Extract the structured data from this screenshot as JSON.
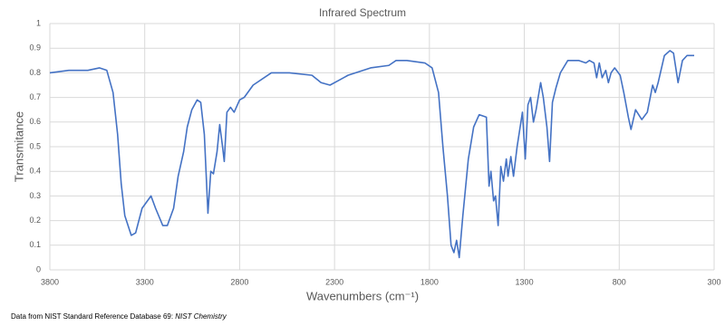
{
  "chart_data": {
    "type": "line",
    "title": "Infrared Spectrum",
    "x_label": "Wavenumbers (cm⁻¹)",
    "y_label": "Transmitance",
    "source": [
      "Data from NIST Standard Reference Database 69: ",
      "NIST Chemistry"
    ],
    "color": "#4472c4",
    "grid": true,
    "xlim": [
      3800,
      300
    ],
    "xticks": [
      3800,
      3300,
      2800,
      2300,
      1800,
      1300,
      800,
      300
    ],
    "ylim": [
      0,
      1
    ],
    "yticks": [
      0,
      0.1,
      0.2,
      0.3,
      0.4,
      0.5,
      0.6,
      0.7,
      0.8,
      0.9,
      1
    ],
    "x": [
      3800,
      3700,
      3600,
      3538,
      3500,
      3467,
      3443,
      3424,
      3405,
      3371,
      3348,
      3314,
      3267,
      3243,
      3205,
      3181,
      3148,
      3124,
      3095,
      3076,
      3052,
      3024,
      3005,
      2986,
      2967,
      2952,
      2938,
      2919,
      2905,
      2890,
      2881,
      2867,
      2848,
      2829,
      2800,
      2776,
      2729,
      2633,
      2538,
      2419,
      2371,
      2324,
      2276,
      2229,
      2110,
      2014,
      1976,
      1919,
      1824,
      1786,
      1752,
      1729,
      1705,
      1686,
      1671,
      1657,
      1643,
      1624,
      1595,
      1567,
      1538,
      1500,
      1486,
      1476,
      1462,
      1452,
      1438,
      1424,
      1410,
      1395,
      1386,
      1371,
      1357,
      1338,
      1310,
      1295,
      1281,
      1267,
      1252,
      1238,
      1214,
      1200,
      1181,
      1167,
      1152,
      1133,
      1110,
      1071,
      1014,
      976,
      957,
      933,
      919,
      905,
      890,
      871,
      857,
      843,
      824,
      795,
      776,
      752,
      738,
      714,
      681,
      652,
      624,
      610,
      595,
      562,
      533,
      514,
      490,
      467,
      443,
      405
    ],
    "values": [
      0.8,
      0.81,
      0.81,
      0.82,
      0.81,
      0.72,
      0.55,
      0.35,
      0.22,
      0.14,
      0.15,
      0.25,
      0.3,
      0.25,
      0.18,
      0.18,
      0.25,
      0.38,
      0.48,
      0.58,
      0.65,
      0.69,
      0.68,
      0.55,
      0.23,
      0.4,
      0.39,
      0.48,
      0.59,
      0.5,
      0.44,
      0.64,
      0.66,
      0.64,
      0.69,
      0.7,
      0.75,
      0.8,
      0.8,
      0.79,
      0.76,
      0.75,
      0.77,
      0.79,
      0.82,
      0.83,
      0.85,
      0.85,
      0.84,
      0.82,
      0.72,
      0.5,
      0.3,
      0.1,
      0.07,
      0.12,
      0.05,
      0.22,
      0.45,
      0.58,
      0.63,
      0.62,
      0.34,
      0.4,
      0.28,
      0.3,
      0.18,
      0.42,
      0.36,
      0.45,
      0.38,
      0.46,
      0.38,
      0.5,
      0.64,
      0.45,
      0.67,
      0.7,
      0.6,
      0.65,
      0.76,
      0.7,
      0.58,
      0.44,
      0.68,
      0.74,
      0.8,
      0.85,
      0.85,
      0.84,
      0.85,
      0.84,
      0.78,
      0.84,
      0.78,
      0.81,
      0.76,
      0.8,
      0.82,
      0.79,
      0.72,
      0.62,
      0.57,
      0.65,
      0.61,
      0.64,
      0.75,
      0.72,
      0.76,
      0.87,
      0.89,
      0.88,
      0.76,
      0.85,
      0.87,
      0.87
    ]
  }
}
